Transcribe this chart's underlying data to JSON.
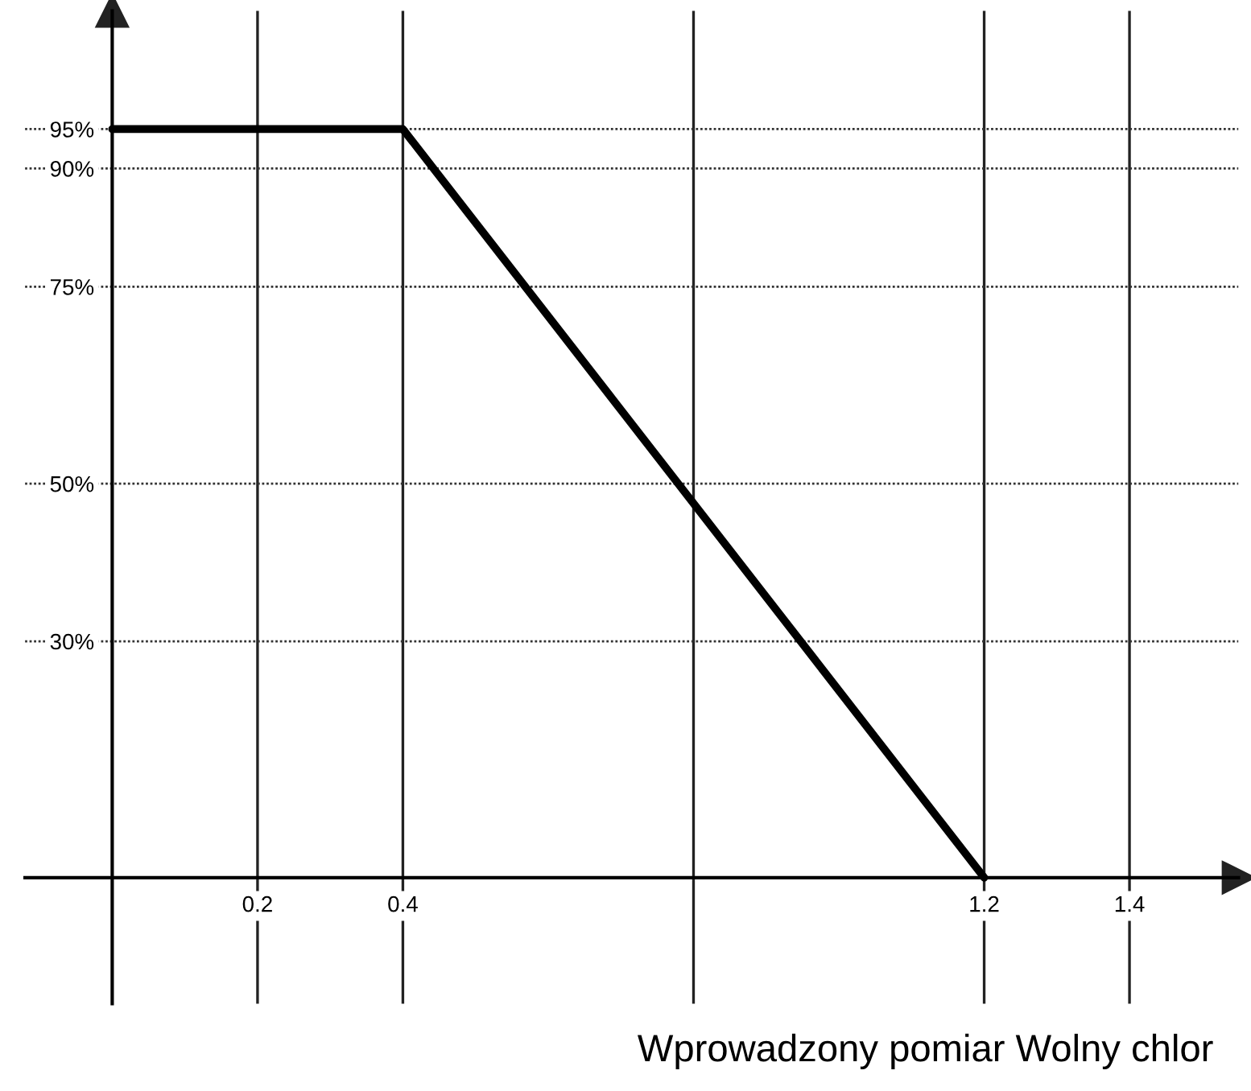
{
  "chart_data": {
    "type": "line",
    "xlabel": "Wprowadzony pomiar Wolny chlor",
    "x": [
      0,
      0.4,
      1.2
    ],
    "series": [
      {
        "color": "#000000",
        "values": [
          95,
          95,
          0
        ]
      }
    ],
    "xlim": [
      -0.12,
      1.55
    ],
    "ylim": [
      -16,
      110
    ],
    "xticks": [
      0.2,
      0.4,
      {
        "value": 0.8,
        "label": null
      },
      1.2,
      1.4
    ],
    "yticks": [
      {
        "value": 30,
        "label": "30%"
      },
      {
        "value": 50,
        "label": "50%"
      },
      {
        "value": 75,
        "label": "75%"
      },
      {
        "value": 90,
        "label": "90%"
      },
      {
        "value": 95,
        "label": "95%"
      }
    ],
    "grid": true,
    "marker": "none",
    "line_style": "solid"
  }
}
